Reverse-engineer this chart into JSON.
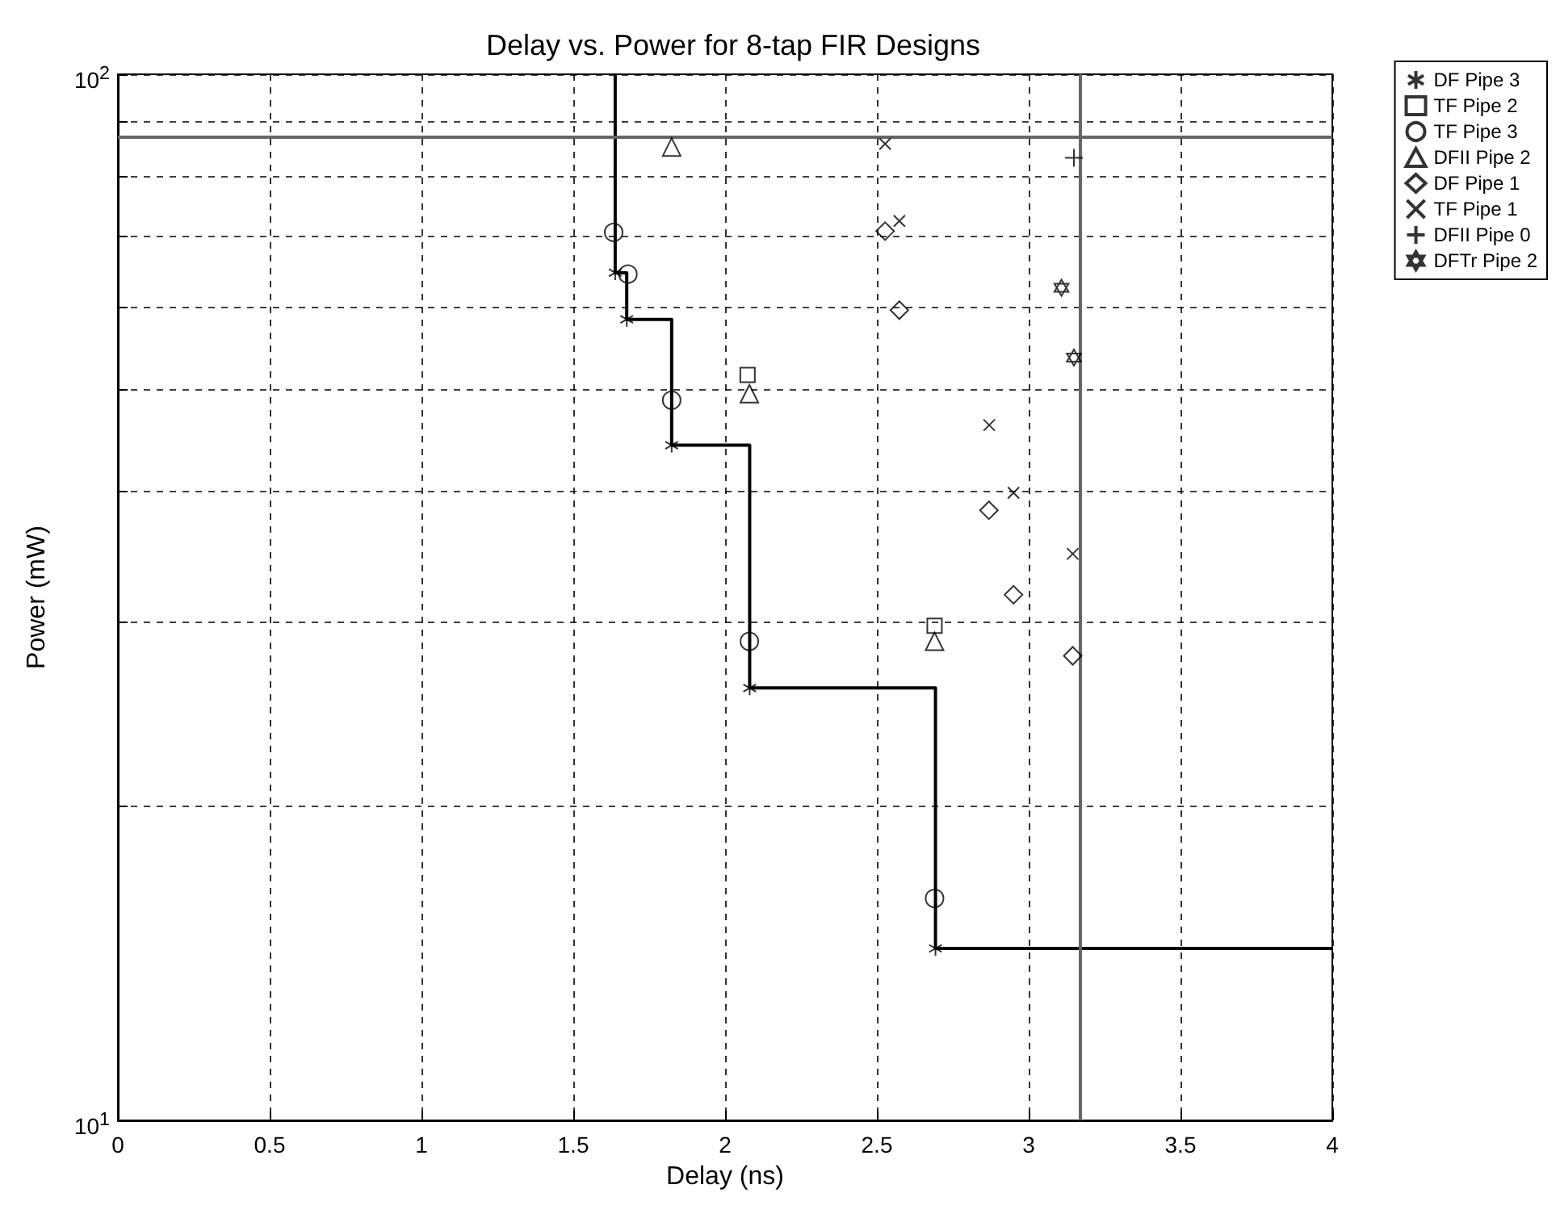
{
  "chart_data": {
    "type": "scatter",
    "title": "Delay vs. Power for 8-tap FIR Designs",
    "xlabel": "Delay (ns)",
    "ylabel": "Power (mW)",
    "xlim": [
      0,
      4
    ],
    "xticks": [
      0,
      0.5,
      1,
      1.5,
      2,
      2.5,
      3,
      3.5,
      4
    ],
    "ylim": [
      10,
      100
    ],
    "yticks": [
      {
        "value": 10,
        "label": "10$^{1}$"
      },
      {
        "value": 20,
        "label": null
      },
      {
        "value": 30,
        "label": null
      },
      {
        "value": 40,
        "label": null
      },
      {
        "value": 50,
        "label": null
      },
      {
        "value": 60,
        "label": null
      },
      {
        "value": 70,
        "label": null
      },
      {
        "value": 80,
        "label": null
      },
      {
        "value": 90,
        "label": null
      },
      {
        "value": 100,
        "label": "10$^{2}$"
      }
    ],
    "log": "y",
    "grid": true,
    "legend": "top right",
    "series": [
      {
        "type": "step",
        "color": "#000000",
        "marker": "none",
        "line_style": "solid",
        "x": [
          1.638,
          1.638,
          1.676,
          1.824,
          2.081,
          2.693,
          4
        ],
        "values": [
          100,
          64.6,
          58.3,
          44.2,
          25.9,
          14.6,
          14.6
        ]
      },
      {
        "name": "DF Pipe 3",
        "color": "#000000",
        "marker": "cross",
        "x": [
          1.638,
          1.676,
          1.824,
          2.081,
          2.693
        ],
        "values": [
          64.6,
          58.3,
          44.2,
          25.9,
          14.6
        ]
      },
      {
        "name": "TF Pipe 2",
        "color": "#000000",
        "marker": "square",
        "x": [
          2.074,
          2.69
        ],
        "values": [
          51.6,
          29.7
        ]
      },
      {
        "name": "TF Pipe 3",
        "color": "#000000",
        "marker": "circle",
        "x": [
          1.633,
          1.68,
          1.824,
          2.08,
          2.69
        ],
        "values": [
          70.6,
          64.4,
          48.8,
          28.7,
          16.3
        ]
      },
      {
        "name": "DFII Pipe 2",
        "color": "#000000",
        "marker": "triangle",
        "x": [
          1.824,
          2.08,
          2.69
        ],
        "values": [
          85.2,
          49.5,
          28.7
        ]
      },
      {
        "name": "DF Pipe 1",
        "color": "#000000",
        "marker": "diamond",
        "x": [
          2.527,
          2.574,
          2.869,
          2.95,
          3.145
        ],
        "values": [
          70.8,
          59.5,
          38.3,
          31.8,
          27.8
        ]
      },
      {
        "name": "TF Pipe 1",
        "color": "#000000",
        "marker": "x",
        "x": [
          2.527,
          2.574,
          2.87,
          2.95,
          3.145
        ],
        "values": [
          85.8,
          72.4,
          46.2,
          39.8,
          34.8
        ]
      },
      {
        "name": "DFII Pipe 0",
        "color": "#000000",
        "marker": "plus",
        "x": [
          3.149
        ],
        "values": [
          83.2
        ]
      },
      {
        "name": "DFTr Pipe 2",
        "color": "#000000",
        "marker": "star",
        "x": [
          3.108,
          3.149
        ],
        "values": [
          62.5,
          53.6
        ]
      }
    ],
    "ref_lines": [
      {
        "axis": "x",
        "value": 3.17,
        "color": "#666666",
        "line_style": "solid"
      },
      {
        "axis": "y",
        "value": 87,
        "color": "#666666",
        "line_style": "solid"
      }
    ]
  }
}
